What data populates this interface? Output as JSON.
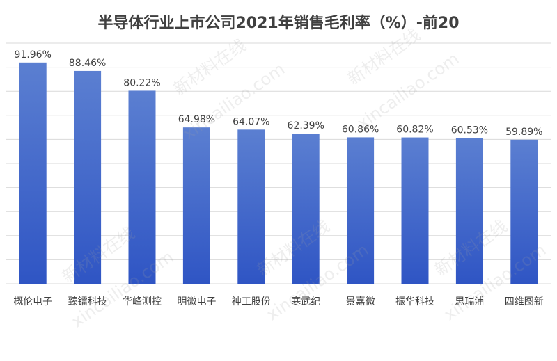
{
  "chart_data": {
    "type": "bar",
    "title": "半导体行业上市公司2021年销售毛利率（%）-前20",
    "categories": [
      "概伦电子",
      "臻镭科技",
      "华峰测控",
      "明微电子",
      "神工股份",
      "寒武纪",
      "景嘉微",
      "振华科技",
      "思瑞浦",
      "四维图新"
    ],
    "values": [
      91.96,
      88.46,
      80.22,
      64.98,
      64.07,
      62.39,
      60.86,
      60.82,
      60.53,
      59.89
    ],
    "data_labels": [
      "91.96%",
      "88.46%",
      "80.22%",
      "64.98%",
      "64.07%",
      "62.39%",
      "60.86%",
      "60.82%",
      "60.53%",
      "59.89%"
    ],
    "ylim": [
      0,
      100
    ],
    "grid": true,
    "legend": "none",
    "xlabel": "",
    "ylabel": ""
  },
  "colors": {
    "bar_top": "#5b7fd1",
    "bar_bottom": "#2f55c4",
    "title": "#404040",
    "label": "#404040",
    "grid": "#d9d9d9"
  },
  "watermark": {
    "brand": "新材料在线",
    "domain": "xincailiao.com"
  }
}
